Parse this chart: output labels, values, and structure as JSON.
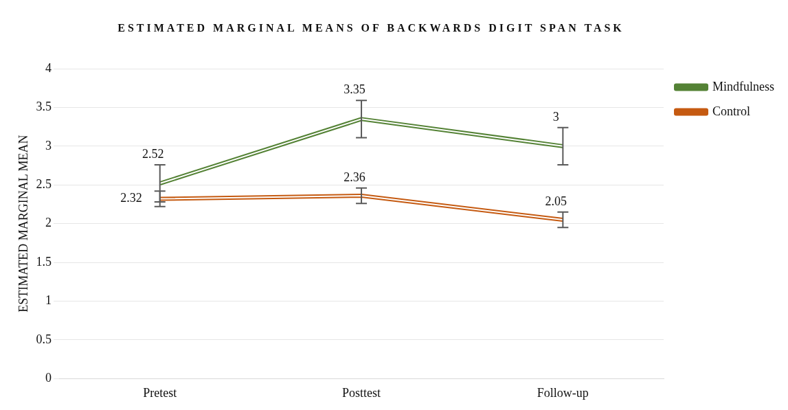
{
  "chart_data": {
    "type": "line",
    "title": "ESTIMATED MARGINAL MEANS OF BACKWARDS DIGIT SPAN TASK",
    "ylabel": "ESTIMATED MARGINAL MEAN",
    "categories": [
      "Pretest",
      "Posttest",
      "Follow-up"
    ],
    "series": [
      {
        "name": "Mindfulness",
        "color": "#548235",
        "values": [
          2.52,
          3.35,
          3
        ],
        "errors": [
          0.24,
          0.24,
          0.24
        ]
      },
      {
        "name": "Control",
        "color": "#c55a11",
        "values": [
          2.32,
          2.36,
          2.05
        ],
        "errors": [
          0.1,
          0.1,
          0.1
        ]
      }
    ],
    "ylim": [
      0,
      4
    ],
    "yticks": [
      0,
      0.5,
      1,
      1.5,
      2,
      2.5,
      3,
      3.5,
      4
    ],
    "grid": "y",
    "legend": "right",
    "marker": "none",
    "line_style": "solid",
    "data_labels": true
  }
}
